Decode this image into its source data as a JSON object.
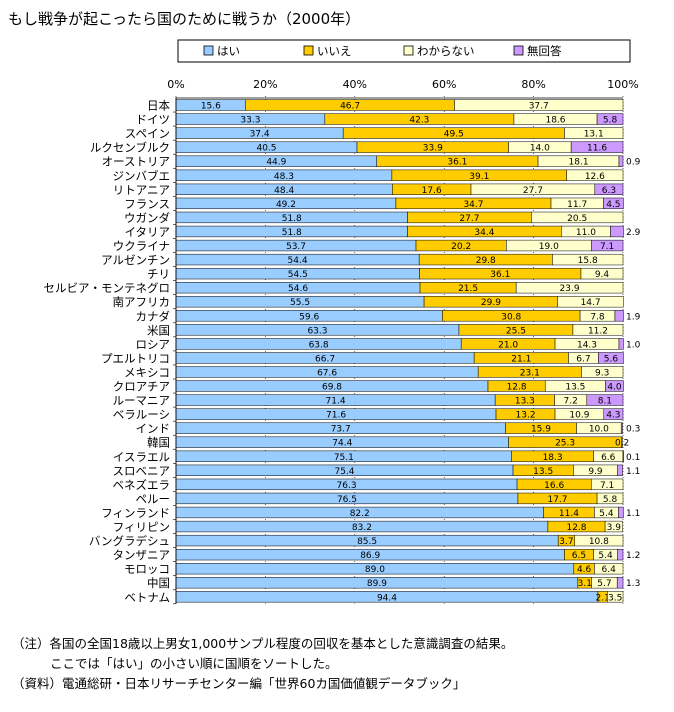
{
  "title": "もし戦争が起こったら国のために戦うか（2000年）",
  "notes": [
    "（注）各国の全国18歳以上男女1,000サンプル程度の回収を基本とした意識調査の結果。",
    "ここでは「はい」の小さい順に国順をソートした。",
    "（資料）電通総研・日本リサーチセンター編「世界60カ国価値観データブック」"
  ],
  "chart_data": {
    "type": "bar",
    "orientation": "horizontal",
    "stacked": "percent",
    "xlim": [
      0,
      100
    ],
    "x_ticks": [
      "0%",
      "20%",
      "40%",
      "60%",
      "80%",
      "100%"
    ],
    "legend_position": "top",
    "categories": [
      "日本",
      "ドイツ",
      "スペイン",
      "ルクセンブルク",
      "オーストリア",
      "ジンバブエ",
      "リトアニア",
      "フランス",
      "ウガンダ",
      "イタリア",
      "ウクライナ",
      "アルゼンチン",
      "チリ",
      "セルビア・モンテネグロ",
      "南アフリカ",
      "カナダ",
      "米国",
      "ロシア",
      "プエルトリコ",
      "メキシコ",
      "クロアチア",
      "ルーマニア",
      "ベラルーシ",
      "インド",
      "韓国",
      "イスラエル",
      "スロベニア",
      "ベネズエラ",
      "ペルー",
      "フィンランド",
      "フィリピン",
      "バングラデシュ",
      "タンザニア",
      "モロッコ",
      "中国",
      "ベトナム"
    ],
    "series": [
      {
        "name": "はい",
        "color": "#99ccff",
        "values": [
          15.6,
          33.3,
          37.4,
          40.5,
          44.9,
          48.3,
          48.4,
          49.2,
          51.8,
          51.8,
          53.7,
          54.4,
          54.5,
          54.6,
          55.5,
          59.6,
          63.3,
          63.8,
          66.7,
          67.6,
          69.8,
          71.4,
          71.6,
          73.7,
          74.4,
          75.1,
          75.4,
          76.3,
          76.5,
          82.2,
          83.2,
          85.5,
          86.9,
          89.0,
          89.9,
          94.4
        ]
      },
      {
        "name": "いいえ",
        "color": "#ffcc00",
        "values": [
          46.7,
          42.3,
          49.5,
          33.9,
          36.1,
          39.1,
          17.6,
          34.7,
          27.7,
          34.4,
          20.2,
          29.8,
          36.1,
          21.5,
          29.9,
          30.8,
          25.5,
          21.0,
          21.1,
          23.1,
          12.8,
          13.3,
          13.2,
          15.9,
          25.3,
          18.3,
          13.5,
          16.6,
          17.7,
          11.4,
          12.8,
          3.7,
          6.5,
          4.6,
          3.1,
          2.1
        ]
      },
      {
        "name": "わからない",
        "color": "#ffffcc",
        "values": [
          37.7,
          18.6,
          13.1,
          14.0,
          18.1,
          12.6,
          27.7,
          11.7,
          20.5,
          11.0,
          19.0,
          15.8,
          9.4,
          23.9,
          14.7,
          7.8,
          11.2,
          14.3,
          6.7,
          9.3,
          13.5,
          7.2,
          10.9,
          10.0,
          0.2,
          6.6,
          9.9,
          7.1,
          5.8,
          5.4,
          3.9,
          10.8,
          5.4,
          6.4,
          5.7,
          3.5
        ]
      },
      {
        "name": "無回答",
        "color": "#cc99ff",
        "values": [
          0.0,
          5.8,
          0.0,
          11.6,
          0.9,
          0.0,
          6.3,
          4.5,
          0.0,
          2.9,
          7.1,
          0.0,
          0.0,
          0.0,
          0.0,
          1.9,
          0.0,
          1.0,
          5.6,
          0.0,
          4.0,
          8.1,
          4.3,
          0.3,
          0.0,
          0.1,
          1.1,
          0.0,
          0.0,
          1.1,
          0.0,
          0.0,
          1.2,
          0.0,
          1.3,
          0.0
        ]
      }
    ],
    "labels": [
      [
        "15.6",
        "46.7",
        "37.7",
        ""
      ],
      [
        "33.3",
        "42.3",
        "18.6",
        "5.8"
      ],
      [
        "37.4",
        "49.5",
        "13.1",
        ""
      ],
      [
        "40.5",
        "33.9",
        "14.0",
        "11.6"
      ],
      [
        "44.9",
        "36.1",
        "18.1",
        "0.9"
      ],
      [
        "48.3",
        "39.1",
        "12.6",
        ""
      ],
      [
        "48.4",
        "17.6",
        "27.7",
        "6.3"
      ],
      [
        "49.2",
        "34.7",
        "11.7",
        "4.5"
      ],
      [
        "51.8",
        "27.7",
        "20.5",
        ""
      ],
      [
        "51.8",
        "34.4",
        "11.0",
        "2.9"
      ],
      [
        "53.7",
        "20.2",
        "19.0",
        "7.1"
      ],
      [
        "54.4",
        "29.8",
        "15.8",
        ""
      ],
      [
        "54.5",
        "36.1",
        "9.4",
        ""
      ],
      [
        "54.6",
        "21.5",
        "23.9",
        ""
      ],
      [
        "55.5",
        "29.9",
        "14.7",
        ""
      ],
      [
        "59.6",
        "30.8",
        "7.8",
        "1.9"
      ],
      [
        "63.3",
        "25.5",
        "11.2",
        ""
      ],
      [
        "63.8",
        "21.0",
        "14.3",
        "1.0"
      ],
      [
        "66.7",
        "21.1",
        "6.7",
        "5.6"
      ],
      [
        "67.6",
        "23.1",
        "9.3",
        ""
      ],
      [
        "69.8",
        "12.8",
        "13.5",
        "4.0"
      ],
      [
        "71.4",
        "13.3",
        "7.2",
        "8.1"
      ],
      [
        "71.6",
        "13.2",
        "10.9",
        "4.3"
      ],
      [
        "73.7",
        "15.9",
        "10.0",
        "0.3"
      ],
      [
        "74.4",
        "25.3",
        "0.2",
        ""
      ],
      [
        "75.1",
        "18.3",
        "6.6",
        "0.1"
      ],
      [
        "75.4",
        "13.5",
        "9.9",
        "1.1"
      ],
      [
        "76.3",
        "16.6",
        "7.1",
        ""
      ],
      [
        "76.5",
        "17.7",
        "5.8",
        ""
      ],
      [
        "82.2",
        "11.4",
        "5.4",
        "1.1"
      ],
      [
        "83.2",
        "12.8",
        "3.9",
        ""
      ],
      [
        "85.5",
        "3.7",
        "10.8",
        ""
      ],
      [
        "86.9",
        "6.5",
        "5.4",
        "1.2"
      ],
      [
        "89.0",
        "4.6",
        "6.4",
        ""
      ],
      [
        "89.9",
        "3.1",
        "5.7",
        "1.3"
      ],
      [
        "94.4",
        "2.1",
        "3.5",
        ""
      ]
    ]
  }
}
